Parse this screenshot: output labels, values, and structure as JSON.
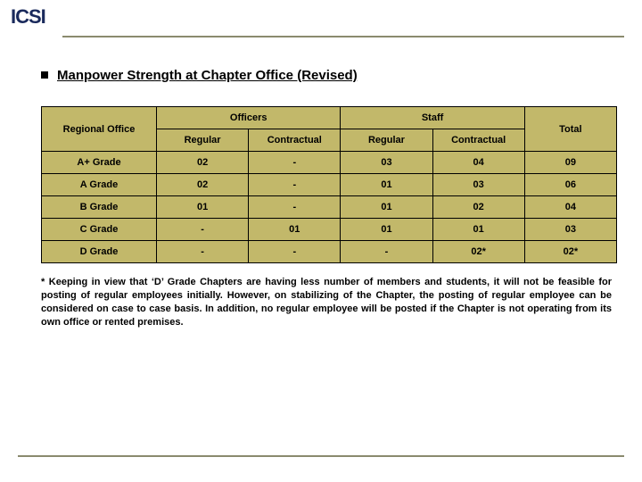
{
  "logo_text": "ICSI",
  "heading": "Manpower Strength at Chapter Office (Revised)",
  "table": {
    "headers": {
      "regional_office": "Regional Office",
      "officers": "Officers",
      "staff": "Staff",
      "total": "Total",
      "regular": "Regular",
      "contractual": "Contractual"
    },
    "rows": [
      {
        "grade": "A+ Grade",
        "off_reg": "02",
        "off_con": "-",
        "staff_reg": "03",
        "staff_con": "04",
        "total": "09"
      },
      {
        "grade": "A   Grade",
        "off_reg": "02",
        "off_con": "-",
        "staff_reg": "01",
        "staff_con": "03",
        "total": "06"
      },
      {
        "grade": "B   Grade",
        "off_reg": "01",
        "off_con": "-",
        "staff_reg": "01",
        "staff_con": "02",
        "total": "04"
      },
      {
        "grade": "C   Grade",
        "off_reg": "-",
        "off_con": "01",
        "staff_reg": "01",
        "staff_con": "01",
        "total": "03"
      },
      {
        "grade": "D  Grade",
        "off_reg": "-",
        "off_con": "-",
        "staff_reg": "-",
        "staff_con": "02*",
        "total": "02*"
      }
    ]
  },
  "footnote": "*   Keeping in view that ‘D’ Grade Chapters are having less number of members and students, it will not be feasible for posting of regular employees initially.  However, on stabilizing of the Chapter, the posting of regular employee can be considered on case to case basis.  In addition, no regular employee will be posted if the Chapter is not operating from its own office or rented premises.",
  "colors": {
    "table_bg": "#c2b86a",
    "logo_color": "#1a2a5c",
    "rule_color": "#8a8a6e"
  }
}
